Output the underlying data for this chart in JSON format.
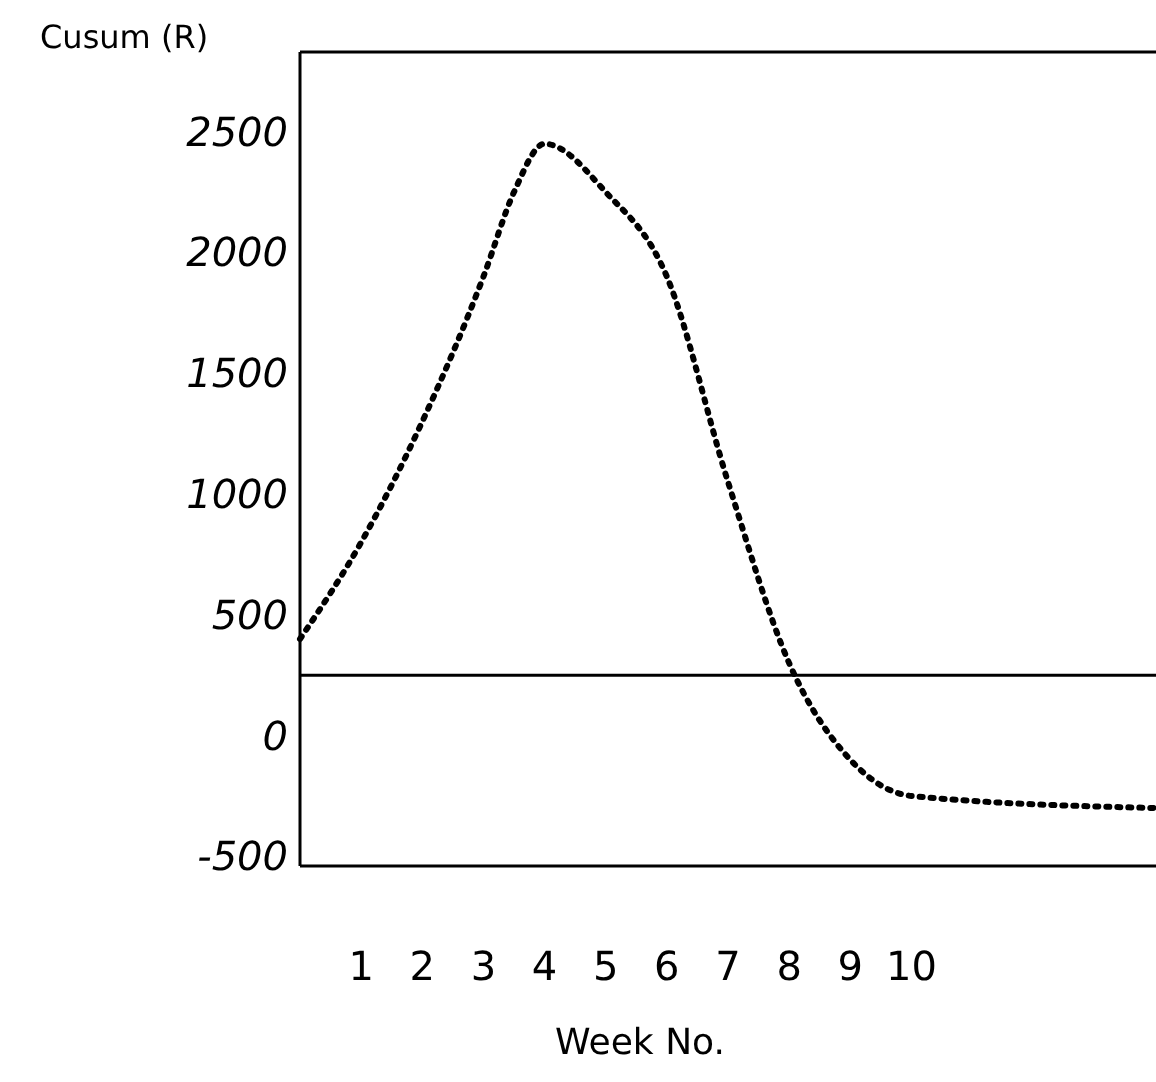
{
  "chart_data": {
    "type": "line",
    "ylabel": "Cusum (R)",
    "xlabel": "Week No.",
    "x": [
      0,
      1,
      2,
      3,
      3.5,
      4,
      5,
      6,
      7,
      8,
      9,
      10,
      14
    ],
    "series": [
      {
        "color": "#000000",
        "values": [
          400,
          800,
          1300,
          1900,
          2250,
          2450,
          2250,
          1900,
          1050,
          300,
          -100,
          -250,
          -300
        ]
      }
    ],
    "xlim": [
      0,
      14
    ],
    "ylim": [
      -540,
      2830
    ],
    "xticks": [
      1,
      2,
      3,
      4,
      5,
      6,
      7,
      8,
      9,
      10
    ],
    "yticks": [
      -500,
      0,
      500,
      1000,
      1500,
      2000,
      2500
    ],
    "ref_lines": [
      {
        "axis": "y",
        "value": 250,
        "color": "#000000",
        "line_style": "solid"
      }
    ],
    "grid": false,
    "marker": "none",
    "line_style": "dotted"
  }
}
